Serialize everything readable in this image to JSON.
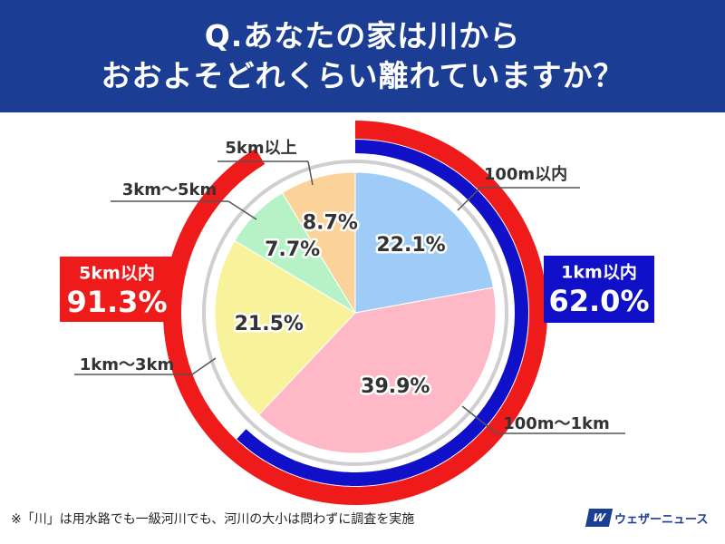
{
  "header": {
    "line1": "Q.あなたの家は川から",
    "line2": "おおよそどれくらい離れていますか？"
  },
  "chart_data": {
    "type": "pie",
    "categories": [
      "100m以内",
      "100m～1km",
      "1km～3km",
      "3km～5km",
      "5km以上"
    ],
    "values": [
      22.1,
      39.9,
      21.5,
      7.7,
      8.7
    ],
    "value_labels": [
      "22.1%",
      "39.9%",
      "21.5%",
      "7.7%",
      "8.7%"
    ],
    "colors": [
      "#9fccf6",
      "#ffb8c6",
      "#f8f39a",
      "#b6f2c6",
      "#fbd39a"
    ],
    "groups": [
      {
        "label": "1km以内",
        "value_label": "62.0%",
        "value": 62.0,
        "color": "#1010c8"
      },
      {
        "label": "5km以内",
        "value_label": "91.3%",
        "value": 91.3,
        "color": "#ef1a1a"
      }
    ]
  },
  "footnote": "※「川」は用水路でも一級河川でも、河川の大小は問わずに調査を実施",
  "brand": {
    "mark": "W",
    "name": "ウェザーニュース"
  }
}
